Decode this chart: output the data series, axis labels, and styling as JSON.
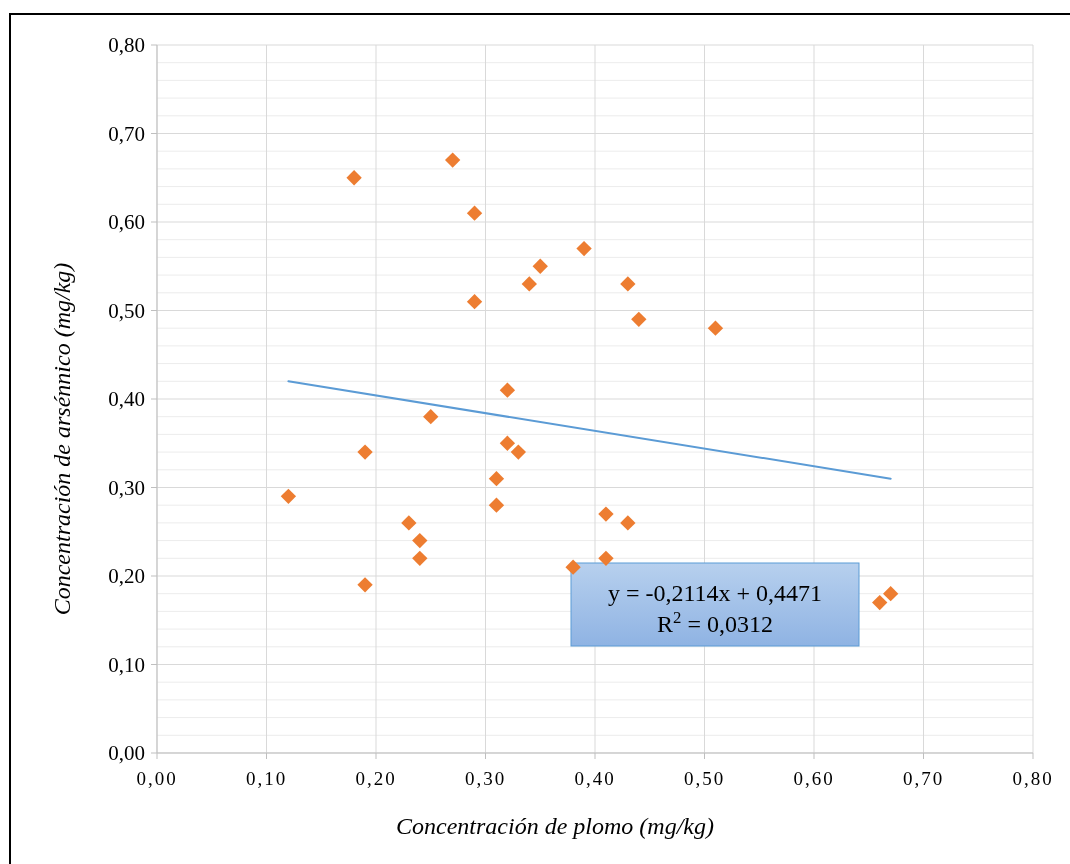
{
  "chart_data": {
    "type": "scatter",
    "xlabel": "Concentración de plomo (mg/kg)",
    "ylabel": "Concentración de arsénnico (mg/kg)",
    "xlim": [
      0,
      0.8
    ],
    "xticks": [
      {
        "value": 0,
        "label": "0,00"
      },
      {
        "value": 0.1,
        "label": "0,10"
      },
      {
        "value": 0.2,
        "label": "0,20"
      },
      {
        "value": 0.3,
        "label": "0,30"
      },
      {
        "value": 0.4,
        "label": "0,40"
      },
      {
        "value": 0.5,
        "label": "0,50"
      },
      {
        "value": 0.6,
        "label": "0,60"
      },
      {
        "value": 0.7,
        "label": "0,70"
      },
      {
        "value": 0.8,
        "label": "0,80"
      }
    ],
    "ylim": [
      0,
      0.8
    ],
    "yticks": [
      {
        "value": 0,
        "label": "0,00"
      },
      {
        "value": 0.02,
        "label": null
      },
      {
        "value": 0.04,
        "label": null
      },
      {
        "value": 0.06,
        "label": null
      },
      {
        "value": 0.08,
        "label": null
      },
      {
        "value": 0.1,
        "label": "0,10"
      },
      {
        "value": 0.12,
        "label": null
      },
      {
        "value": 0.14,
        "label": null
      },
      {
        "value": 0.16,
        "label": null
      },
      {
        "value": 0.18,
        "label": null
      },
      {
        "value": 0.2,
        "label": "0,20"
      },
      {
        "value": 0.22,
        "label": null
      },
      {
        "value": 0.24,
        "label": null
      },
      {
        "value": 0.26,
        "label": null
      },
      {
        "value": 0.28,
        "label": null
      },
      {
        "value": 0.3,
        "label": "0,30"
      },
      {
        "value": 0.32,
        "label": null
      },
      {
        "value": 0.34,
        "label": null
      },
      {
        "value": 0.36,
        "label": null
      },
      {
        "value": 0.38,
        "label": null
      },
      {
        "value": 0.4,
        "label": "0,40"
      },
      {
        "value": 0.42,
        "label": null
      },
      {
        "value": 0.44,
        "label": null
      },
      {
        "value": 0.46,
        "label": null
      },
      {
        "value": 0.48,
        "label": null
      },
      {
        "value": 0.5,
        "label": "0,50"
      },
      {
        "value": 0.52,
        "label": null
      },
      {
        "value": 0.54,
        "label": null
      },
      {
        "value": 0.56,
        "label": null
      },
      {
        "value": 0.58,
        "label": null
      },
      {
        "value": 0.6,
        "label": "0,60"
      },
      {
        "value": 0.62,
        "label": null
      },
      {
        "value": 0.64,
        "label": null
      },
      {
        "value": 0.66,
        "label": null
      },
      {
        "value": 0.68,
        "label": null
      },
      {
        "value": 0.7,
        "label": "0,70"
      },
      {
        "value": 0.72,
        "label": null
      },
      {
        "value": 0.74,
        "label": null
      },
      {
        "value": 0.76,
        "label": null
      },
      {
        "value": 0.78,
        "label": null
      },
      {
        "value": 0.8,
        "label": "0,80"
      }
    ],
    "grid": true,
    "annotations": [
      "y = -0,2114x + 0,4471",
      "R$^{2}$ = 0,0312"
    ],
    "series": [
      {
        "marker": "diamond",
        "color": "#ed7d31",
        "x": [
          0.12,
          0.18,
          0.19,
          0.19,
          0.23,
          0.24,
          0.24,
          0.25,
          0.27,
          0.29,
          0.29,
          0.31,
          0.31,
          0.32,
          0.32,
          0.33,
          0.34,
          0.35,
          0.38,
          0.39,
          0.41,
          0.41,
          0.43,
          0.43,
          0.44,
          0.51,
          0.66,
          0.67
        ],
        "values": [
          0.29,
          0.65,
          0.34,
          0.19,
          0.26,
          0.24,
          0.22,
          0.38,
          0.67,
          0.61,
          0.51,
          0.31,
          0.28,
          0.41,
          0.35,
          0.34,
          0.53,
          0.55,
          0.21,
          0.57,
          0.27,
          0.22,
          0.53,
          0.26,
          0.49,
          0.48,
          0.17,
          0.18
        ]
      },
      {
        "type": "line",
        "color": "#5b9bd5",
        "x": [
          0.12,
          0.67
        ],
        "values": [
          0.42,
          0.31
        ]
      }
    ]
  }
}
